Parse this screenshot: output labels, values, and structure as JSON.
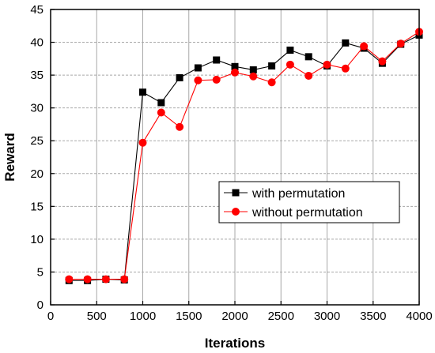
{
  "chart_data": {
    "type": "line",
    "xlabel": "Iterations",
    "ylabel": "Reward",
    "xlim": [
      0,
      4000
    ],
    "ylim": [
      0,
      45
    ],
    "xticks": [
      0,
      500,
      1000,
      1500,
      2000,
      2500,
      3000,
      3500,
      4000
    ],
    "yticks": [
      0,
      5,
      10,
      15,
      20,
      25,
      30,
      35,
      40,
      45
    ],
    "x": [
      200,
      400,
      600,
      800,
      1000,
      1200,
      1400,
      1600,
      1800,
      2000,
      2200,
      2400,
      2600,
      2800,
      3000,
      3200,
      3400,
      3600,
      3800,
      4000
    ],
    "grid": "vertical solid, horizontal dashed",
    "legend_position": "center-right",
    "series": [
      {
        "name": "with permutation",
        "color": "#000000",
        "marker": "square",
        "values": [
          3.7,
          3.7,
          3.9,
          3.8,
          32.4,
          30.8,
          34.6,
          36.1,
          37.3,
          36.3,
          35.8,
          36.4,
          38.8,
          37.8,
          36.4,
          39.9,
          39.1,
          36.8,
          39.7,
          41.1
        ]
      },
      {
        "name": "without permutation",
        "color": "#ff0000",
        "marker": "circle",
        "values": [
          3.9,
          3.9,
          3.9,
          3.9,
          24.7,
          29.3,
          27.1,
          34.2,
          34.3,
          35.4,
          34.8,
          33.9,
          36.6,
          34.9,
          36.6,
          36.0,
          39.4,
          37.1,
          39.8,
          41.6
        ]
      }
    ]
  }
}
